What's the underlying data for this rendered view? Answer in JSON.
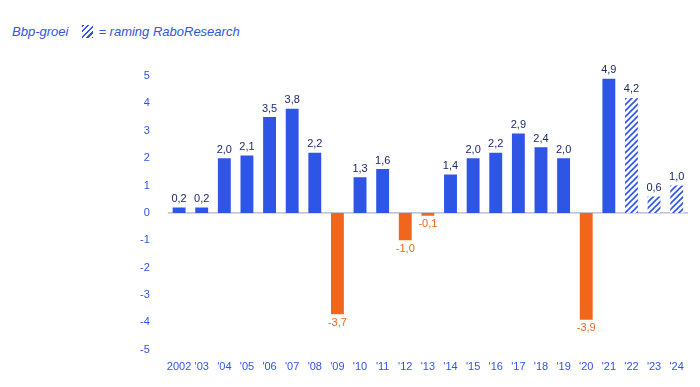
{
  "chart_data": {
    "type": "bar",
    "title": "Bbp-groei",
    "forecast_label": "= raming RaboResearch",
    "categories": [
      "2002",
      "'03",
      "'04",
      "'05",
      "'06",
      "'07",
      "'08",
      "'09",
      "'10",
      "'11",
      "'12",
      "'13",
      "'14",
      "'15",
      "'16",
      "'17",
      "'18",
      "'19",
      "'20",
      "'21",
      "'22",
      "'23",
      "'24"
    ],
    "values": [
      0.2,
      0.2,
      2.0,
      2.1,
      3.5,
      3.8,
      2.2,
      -3.7,
      1.3,
      1.6,
      -1.0,
      -0.1,
      1.4,
      2.0,
      2.2,
      2.9,
      2.4,
      2.0,
      -3.9,
      4.9,
      4.2,
      0.6,
      1.0
    ],
    "value_labels": [
      "0,2",
      "0,2",
      "2,0",
      "2,1",
      "3,5",
      "3,8",
      "2,2",
      "-3,7",
      "1,3",
      "1,6",
      "-1,0",
      "-0,1",
      "1,4",
      "2,0",
      "2,2",
      "2,9",
      "2,4",
      "2,0",
      "-3,9",
      "4,9",
      "4,2",
      "0,6",
      "1,0"
    ],
    "forecast": [
      false,
      false,
      false,
      false,
      false,
      false,
      false,
      false,
      false,
      false,
      false,
      false,
      false,
      false,
      false,
      false,
      false,
      false,
      false,
      false,
      true,
      true,
      true
    ],
    "colors": [
      "#2f55e6",
      "#2f55e6",
      "#2f55e6",
      "#2f55e6",
      "#2f55e6",
      "#2f55e6",
      "#2f55e6",
      "#f2661c",
      "#2f55e6",
      "#2f55e6",
      "#f2661c",
      "#f2661c",
      "#2f55e6",
      "#2f55e6",
      "#2f55e6",
      "#2f55e6",
      "#2f55e6",
      "#2f55e6",
      "#f2661c",
      "#2f55e6",
      "#2f55e6",
      "#2f55e6",
      "#2f55e6"
    ],
    "ylim": [
      -5,
      5
    ],
    "yticks": [
      -5,
      -4,
      -3,
      -2,
      -1,
      0,
      1,
      2,
      3,
      4,
      5
    ],
    "grid": false,
    "data_labels": true
  }
}
